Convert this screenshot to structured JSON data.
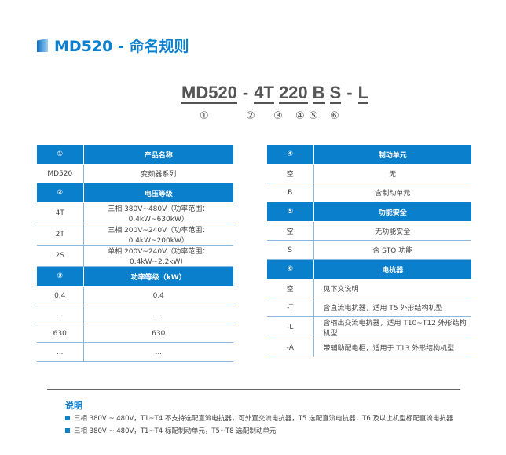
{
  "title": "MD520 - 命名规则",
  "model_code": {
    "segments": [
      "MD520",
      "4T",
      "220",
      "B",
      "S",
      "L"
    ],
    "dash": "-",
    "numbers": [
      "①",
      "②",
      "③",
      "④",
      "⑤",
      "⑥"
    ]
  },
  "left_table": [
    {
      "header": [
        "①",
        "产品名称"
      ],
      "rows": [
        [
          "MD520",
          "变频器系列"
        ]
      ]
    },
    {
      "header": [
        "②",
        "电压等级"
      ],
      "rows": [
        [
          "4T",
          "三相 380V~480V（功率范围：0.4kW~630kW）"
        ],
        [
          "2T",
          "三相 200V~240V（功率范围：0.4kW~200kW）"
        ],
        [
          "2S",
          "单相 200V~240V（功率范围：0.4kW~2.2kW）"
        ]
      ]
    },
    {
      "header": [
        "③",
        "功率等级（kW）"
      ],
      "rows": [
        [
          "0.4",
          "0.4"
        ],
        [
          "...",
          "..."
        ],
        [
          "630",
          "630"
        ],
        [
          "...",
          "..."
        ]
      ]
    }
  ],
  "right_table": [
    {
      "header": [
        "④",
        "制动单元"
      ],
      "rows": [
        [
          "空",
          "无"
        ],
        [
          "B",
          "含制动单元"
        ]
      ]
    },
    {
      "header": [
        "⑤",
        "功能安全"
      ],
      "rows": [
        [
          "空",
          "无功能安全"
        ],
        [
          "S",
          "含 STO 功能"
        ]
      ]
    },
    {
      "header": [
        "⑥",
        "电抗器"
      ],
      "rows": [
        [
          "空",
          "见下文说明"
        ],
        [
          "-T",
          "含直流电抗器，适用 T5 外形结构机型"
        ],
        [
          "-L",
          "含输出交流电抗器，适用 T10~T12 外形结构机型"
        ],
        [
          "-A",
          "带辅助配电柜，适用于 T13 外形结构机型"
        ]
      ]
    }
  ],
  "notes": {
    "title": "说明",
    "items": [
      "三相 380V ~ 480V，T1~T4 不支持选配直流电抗器，可外置交流电抗器，T5 选配直流电抗器，T6 及以上机型标配直流电抗器",
      "三相 380V ~ 480V，T1~T4 标配制动单元，T5~T8 选配制动单元"
    ]
  },
  "colors": {
    "accent": "#0a7fcb"
  }
}
